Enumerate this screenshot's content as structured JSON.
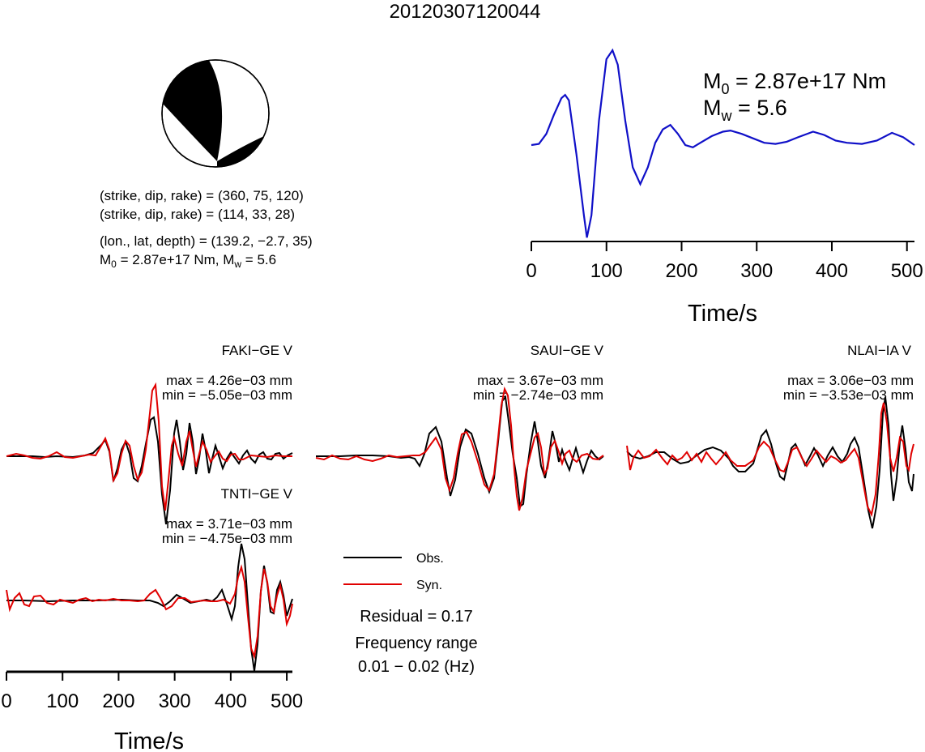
{
  "title": "20120307120044",
  "mechanism": {
    "plane1": "(strike, dip, rake) = (360, 75, 120)",
    "plane2": "(strike, dip, rake) = (114, 33, 28)",
    "location": "(lon., lat, depth) = (139.2, −2.7, 35)",
    "moment_line": {
      "m0_value": " = 2.87e+17 Nm, ",
      "mw_value": " = 5.6"
    }
  },
  "stf": {
    "m0_label": " = 2.87e+17 Nm",
    "mw_label": " = 5.6"
  },
  "legend": {
    "obs": "Obs.",
    "syn": "Syn.",
    "residual": "Residual = 0.17",
    "freq_title": "Frequency range",
    "freq_value": "0.01 − 0.02 (Hz)"
  },
  "colors": {
    "observed": "#000000",
    "synthetic": "#e00000",
    "stf": "#1010c8"
  },
  "chart_data": [
    {
      "type": "line",
      "name": "source-time-function",
      "xlabel": "Time/s",
      "xlim": [
        0,
        510
      ],
      "xticks": [
        0,
        100,
        200,
        300,
        400,
        500
      ],
      "series": [
        {
          "name": "",
          "x": [
            0,
            10,
            20,
            30,
            40,
            45,
            50,
            60,
            70,
            74,
            80,
            90,
            100,
            108,
            115,
            125,
            135,
            145,
            155,
            165,
            175,
            185,
            195,
            205,
            215,
            225,
            240,
            255,
            265,
            280,
            295,
            310,
            325,
            340,
            355,
            375,
            390,
            405,
            420,
            440,
            460,
            480,
            495,
            510
          ],
          "y": [
            0.68,
            0.69,
            0.78,
            0.95,
            1.1,
            1.13,
            1.08,
            0.6,
            0.05,
            -0.15,
            0.05,
            0.9,
            1.45,
            1.53,
            1.4,
            0.9,
            0.48,
            0.33,
            0.48,
            0.7,
            0.82,
            0.86,
            0.78,
            0.68,
            0.66,
            0.7,
            0.76,
            0.8,
            0.81,
            0.78,
            0.74,
            0.7,
            0.69,
            0.71,
            0.75,
            0.8,
            0.77,
            0.72,
            0.7,
            0.69,
            0.72,
            0.79,
            0.75,
            0.68
          ]
        }
      ]
    },
    {
      "type": "line",
      "station": "FAKI−GE V",
      "max": "max = 4.26e−03 mm",
      "min": "min = −5.05e−03 mm"
    },
    {
      "type": "line",
      "station": "SAUI−GE V",
      "max": "max = 3.67e−03 mm",
      "min": "min = −2.74e−03 mm"
    },
    {
      "type": "line",
      "station": "NLAI−IA V",
      "max": "max = 3.06e−03 mm",
      "min": "min = −3.53e−03 mm"
    },
    {
      "type": "line",
      "station": "TNTI−GE V",
      "max": "max = 3.71e−03 mm",
      "min": "min = −4.75e−03 mm",
      "xlabel": "Time/s",
      "xlim": [
        0,
        510
      ],
      "xticks": [
        0,
        100,
        200,
        300,
        400,
        500
      ]
    }
  ]
}
